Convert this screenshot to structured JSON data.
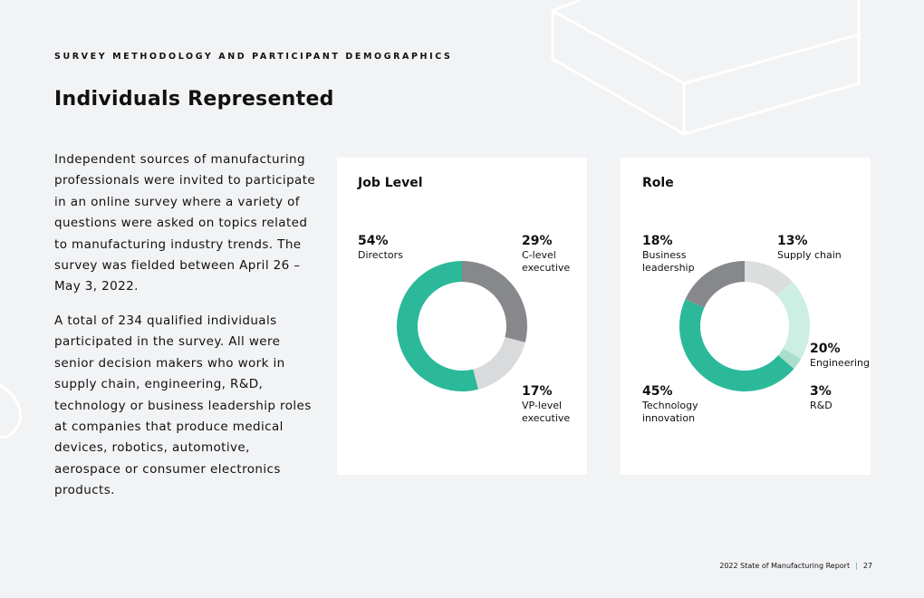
{
  "header": {
    "eyebrow": "SURVEY METHODOLOGY AND PARTICIPANT DEMOGRAPHICS",
    "title": "Individuals Represented"
  },
  "body": [
    "Independent sources of manufacturing professionals were invited to participate in an online survey where a variety of questions were asked on topics related to manufacturing industry trends. The survey was fielded between April 26 – May 3, 2022.",
    "A total of 234 qualified individuals participated in the survey. All were senior decision makers who work in supply chain, engineering, R&D, technology or business leadership roles at companies that produce medical devices, robotics, automotive, aerospace or consumer electronics products."
  ],
  "chart_data": [
    {
      "type": "pie",
      "title": "Job Level",
      "categories": [
        "C-level executive",
        "VP-level executive",
        "Directors"
      ],
      "values": [
        29,
        17,
        54
      ],
      "value_labels": [
        "29%",
        "17%",
        "54%"
      ],
      "colors": [
        "#87888b",
        "#d9dadb",
        "#2bb99a"
      ]
    },
    {
      "type": "pie",
      "title": "Role",
      "categories": [
        "Supply chain",
        "Engineering",
        "R&D",
        "Technology innovation",
        "Business leadership"
      ],
      "values": [
        13,
        20,
        3,
        45,
        18
      ],
      "value_labels": [
        "13%",
        "20%",
        "3%",
        "45%",
        "18%"
      ],
      "colors": [
        "#dcdddd",
        "#cdeee3",
        "#a9dfcc",
        "#2bb99a",
        "#87888b"
      ]
    }
  ],
  "footer": {
    "report": "2022 State of Manufacturing Report",
    "page": "27"
  }
}
